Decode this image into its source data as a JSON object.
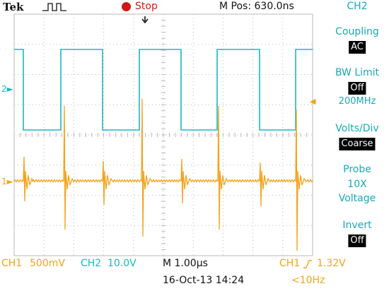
{
  "header": {
    "brand": "Tek",
    "trigger_state": "Stop",
    "m_pos": "M Pos: 630.0ns"
  },
  "menu": {
    "channel": "CH2",
    "items": [
      {
        "title": "Coupling",
        "value": "AC"
      },
      {
        "title": "BW Limit",
        "value": "Off",
        "sub": "200MHz"
      },
      {
        "title": "Volts/Div",
        "value": "Coarse"
      },
      {
        "title": "Probe",
        "lines": [
          "10X",
          "Voltage"
        ]
      },
      {
        "title": "Invert",
        "value": "Off"
      }
    ]
  },
  "markers": {
    "ch2_level": "2",
    "ch1_level": "1"
  },
  "status": {
    "ch1": "CH1",
    "ch1_scale": "500mV",
    "ch2": "CH2",
    "ch2_scale": "10.0V",
    "timebase": "M 1.00µs",
    "trigger_source": "CH1",
    "trigger_level": "1.32V",
    "datetime": "16-Oct-13 14:24",
    "frequency": "<10Hz"
  },
  "colors": {
    "ch1": "#f4a21b",
    "ch2": "#18b8c2",
    "grid": "#b8b8b8",
    "stop": "#d01818"
  }
}
